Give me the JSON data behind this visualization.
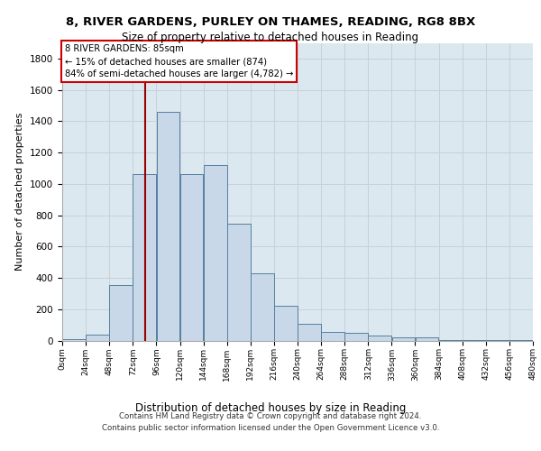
{
  "title1": "8, RIVER GARDENS, PURLEY ON THAMES, READING, RG8 8BX",
  "title2": "Size of property relative to detached houses in Reading",
  "xlabel": "Distribution of detached houses by size in Reading",
  "ylabel": "Number of detached properties",
  "bar_values": [
    10,
    40,
    355,
    1060,
    1460,
    1060,
    1120,
    745,
    430,
    220,
    105,
    55,
    50,
    30,
    18,
    18,
    5,
    3,
    2,
    1
  ],
  "bar_edges": [
    0,
    24,
    48,
    72,
    96,
    120,
    144,
    168,
    192,
    216,
    240,
    264,
    288,
    312,
    336,
    360,
    384,
    408,
    432,
    456,
    480
  ],
  "bar_color": "#c8d8e8",
  "bar_edge_color": "#5580a0",
  "vline_x": 85,
  "vline_color": "#990000",
  "annotation_line1": "8 RIVER GARDENS: 85sqm",
  "annotation_line2": "← 15% of detached houses are smaller (874)",
  "annotation_line3": "84% of semi-detached houses are larger (4,782) →",
  "annotation_box_color": "#ffffff",
  "annotation_box_edge": "#cc0000",
  "ylim": [
    0,
    1900
  ],
  "yticks": [
    0,
    200,
    400,
    600,
    800,
    1000,
    1200,
    1400,
    1600,
    1800
  ],
  "grid_color": "#c8d0d8",
  "background_color": "#dce8f0",
  "footer_line1": "Contains HM Land Registry data © Crown copyright and database right 2024.",
  "footer_line2": "Contains public sector information licensed under the Open Government Licence v3.0."
}
